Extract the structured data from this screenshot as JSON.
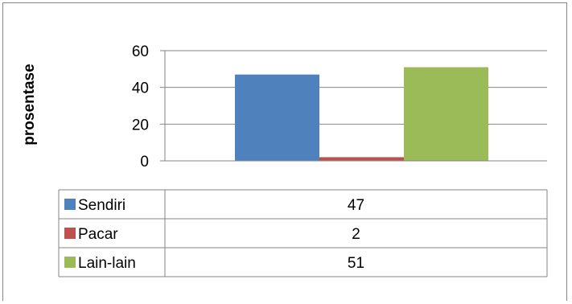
{
  "chart_data": {
    "type": "bar",
    "categories": [
      ""
    ],
    "series": [
      {
        "name": "Sendiri",
        "values": [
          47
        ],
        "color": "#4F81BD"
      },
      {
        "name": "Pacar",
        "values": [
          2
        ],
        "color": "#C0504D"
      },
      {
        "name": "Lain-lain",
        "values": [
          51
        ],
        "color": "#9BBB59"
      }
    ],
    "title": "",
    "xlabel": "",
    "ylabel": "prosentase",
    "ylim": [
      0,
      60
    ],
    "yticks": [
      "0",
      "20",
      "40",
      "60"
    ],
    "grid": true,
    "legend": "data-table-below",
    "data_table": [
      {
        "series": "Sendiri",
        "value": "47"
      },
      {
        "series": "Pacar",
        "value": "2"
      },
      {
        "series": "Lain-lain",
        "value": "51"
      }
    ]
  },
  "colors": {
    "gridline": "#868686",
    "axis": "#868686",
    "border": "#868686"
  }
}
